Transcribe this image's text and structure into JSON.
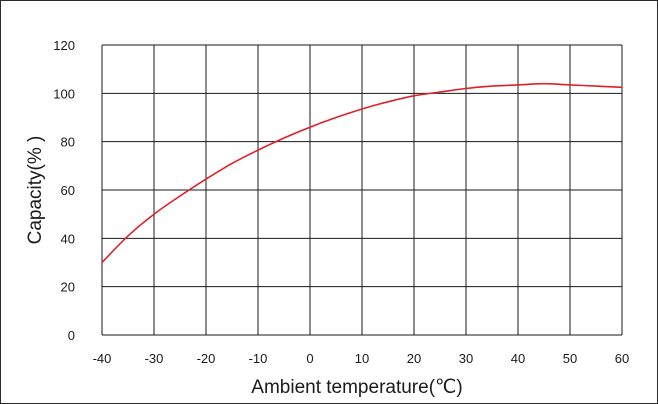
{
  "chart_data": {
    "type": "line",
    "title": "",
    "xlabel": "Ambient temperature(℃)",
    "ylabel": "Capacity(% )",
    "xlim": [
      -40,
      60
    ],
    "ylim": [
      0,
      120
    ],
    "x_ticks": [
      "-40",
      "-30",
      "-20",
      "-10",
      "0",
      "10",
      "20",
      "30",
      "40",
      "50",
      "60"
    ],
    "y_ticks": [
      "0",
      "20",
      "40",
      "60",
      "80",
      "100",
      "120"
    ],
    "grid": true,
    "line_color": "#e0202a",
    "series": [
      {
        "x": [
          -40,
          -35,
          -30,
          -25,
          -20,
          -15,
          -10,
          -5,
          0,
          5,
          10,
          15,
          20,
          25,
          30,
          35,
          40,
          45,
          50,
          55,
          60
        ],
        "values": [
          30,
          41,
          50,
          57.5,
          64.5,
          71,
          76.5,
          81.5,
          86,
          90,
          93.5,
          96.5,
          99,
          100.5,
          102,
          103,
          103.5,
          104,
          103.5,
          103,
          102.5
        ]
      }
    ]
  }
}
